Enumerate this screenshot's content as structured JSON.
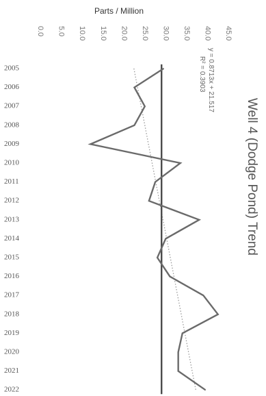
{
  "chart_data": {
    "type": "line",
    "orientation": "rotated",
    "title": "Well 4 (Dodge Pond) Trend",
    "xlabel": "",
    "ylabel": "Parts / Million",
    "ylim": [
      0,
      45
    ],
    "yticks": [
      "0.0",
      "5.0",
      "10.0",
      "15.0",
      "20.0",
      "25.0",
      "30.0",
      "35.0",
      "40.0",
      "45.0"
    ],
    "categories": [
      "2005",
      "2006",
      "2007",
      "2008",
      "2009",
      "2010",
      "2011",
      "2012",
      "2013",
      "2014",
      "2015",
      "2016",
      "2017",
      "2018",
      "2019",
      "2020",
      "2021",
      "2022"
    ],
    "series": [
      {
        "values": [
          29.5,
          22.5,
          25.0,
          22.5,
          12.0,
          33.5,
          27.5,
          26.0,
          38.0,
          30.0,
          28.0,
          31.0,
          39.0,
          42.5,
          34.0,
          33.0,
          33.0,
          39.5
        ],
        "color": "#6a6a6a"
      }
    ],
    "reference_line": {
      "value": 29.0,
      "color": "#4a4a4a"
    },
    "trendline": {
      "equation": "y = 0.8713x + 21.517",
      "r_squared": "R² = 0.3903",
      "slope": 0.8713,
      "intercept": 21.517,
      "color": "#9a9a9a"
    }
  }
}
